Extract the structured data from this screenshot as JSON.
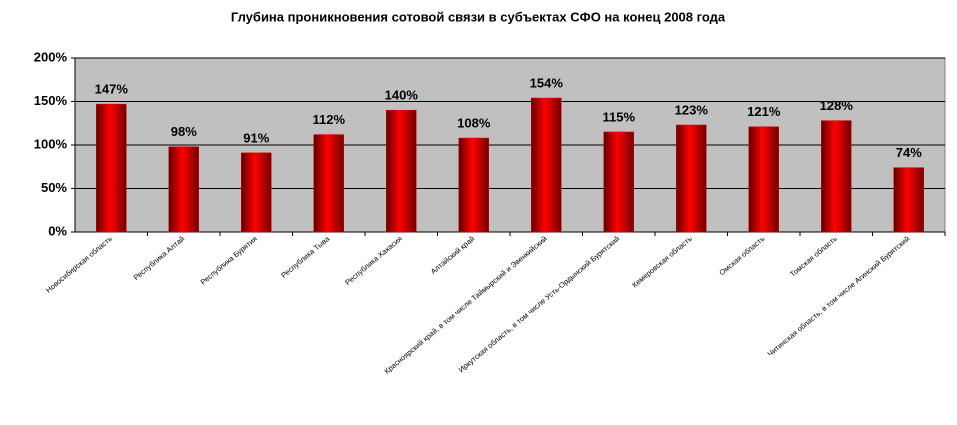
{
  "chart_data": {
    "type": "bar",
    "title": "Глубина проникновения сотовой связи в субъектах СФО на конец 2008 года",
    "categories": [
      "Новосибирская область",
      "Республика Алтай",
      "Республика Бурятия",
      "Республика Тыва",
      "Республика Хакасия",
      "Алтайский край",
      "Красноярский край, в том числе Таймырский и Эвенкийский",
      "Иркутская область, в том числе Усть-Ордынский Бурятский",
      "Кемеровская область",
      "Омская область",
      "Томская область",
      "Читинская область, в том числе Агинский Бурятский"
    ],
    "values": [
      147,
      98,
      91,
      112,
      140,
      108,
      154,
      115,
      123,
      121,
      128,
      74
    ],
    "value_labels": [
      "147%",
      "98%",
      "91%",
      "112%",
      "140%",
      "108%",
      "154%",
      "115%",
      "123%",
      "121%",
      "128%",
      "74%"
    ],
    "color": "#e00000",
    "ylim": [
      0,
      200
    ],
    "yticks": [
      {
        "value": 0,
        "label": "0%"
      },
      {
        "value": 50,
        "label": "50%"
      },
      {
        "value": 100,
        "label": "100%"
      },
      {
        "value": 150,
        "label": "150%"
      },
      {
        "value": 200,
        "label": "200%"
      }
    ],
    "grid": true
  }
}
